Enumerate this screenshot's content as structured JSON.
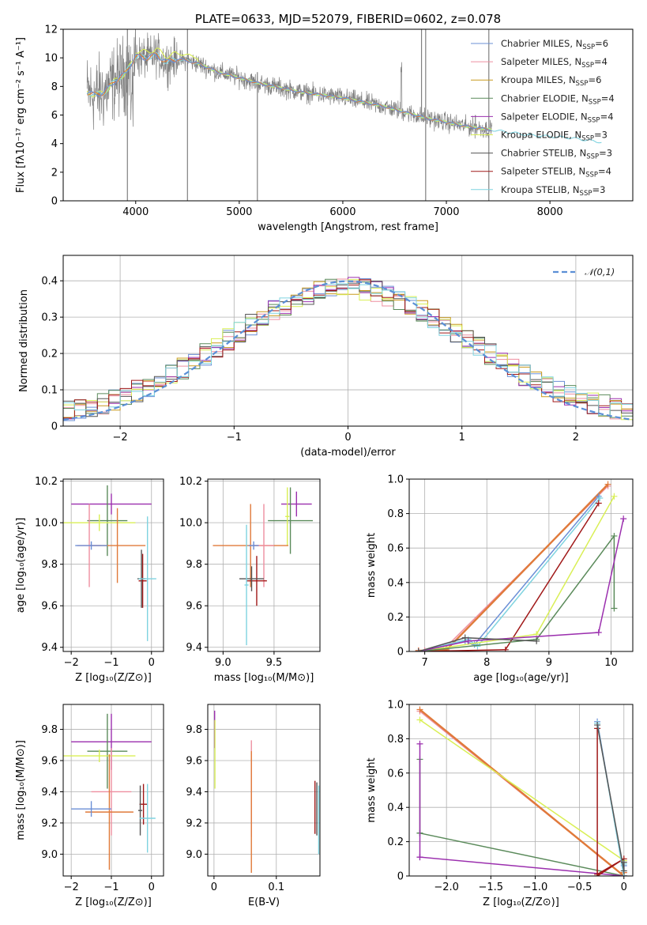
{
  "colors": {
    "chabrier_miles": "#6b8fd6",
    "salpeter_miles": "#ee8fa0",
    "kroupa_miles": "#c99a1e",
    "chabrier_elodie": "#5a8a5a",
    "salpeter_elodie": "#9b2fae",
    "kroupa_elodie": "#d9ef55",
    "chabrier_stelib": "#555555",
    "salpeter_stelib": "#a01818",
    "kroupa_stelib": "#7fd3e0",
    "data": "#808080",
    "orange": "#e07a3a",
    "normal": "#5b8fd6"
  },
  "chart_data": [
    {
      "id": "spectrum",
      "type": "line",
      "title": "PLATE=0633, MJD=52079, FIBERID=0602, z=0.078",
      "xlabel": "wavelength [Angstrom, rest frame]",
      "ylabel": "Flux [fλ10⁻¹⁷ erg cm⁻² s⁻¹ A⁻¹]",
      "xlim": [
        3300,
        8800
      ],
      "ylim": [
        0,
        12
      ],
      "xticks": [
        4000,
        5000,
        6000,
        7000,
        8000
      ],
      "yticks": [
        0,
        2,
        4,
        6,
        8,
        10,
        12
      ],
      "legend_position": "top-right",
      "legend": [
        {
          "name": "Chabrier MILES, N_SSP=6",
          "base": "Chabrier MILES, N",
          "sub": "SSP",
          "tail": "=6",
          "color_key": "chabrier_miles"
        },
        {
          "name": "Salpeter MILES, N_SSP=4",
          "base": "Salpeter MILES, N",
          "sub": "SSP",
          "tail": "=4",
          "color_key": "salpeter_miles"
        },
        {
          "name": "Kroupa MILES, N_SSP=6",
          "base": "Kroupa MILES, N",
          "sub": "SSP",
          "tail": "=6",
          "color_key": "kroupa_miles"
        },
        {
          "name": "Chabrier ELODIE, N_SSP=4",
          "base": "Chabrier ELODIE, N",
          "sub": "SSP",
          "tail": "=4",
          "color_key": "chabrier_elodie"
        },
        {
          "name": "Salpeter ELODIE, N_SSP=4",
          "base": "Salpeter ELODIE, N",
          "sub": "SSP",
          "tail": "=4",
          "color_key": "salpeter_elodie"
        },
        {
          "name": "Kroupa ELODIE, N_SSP=3",
          "base": "Kroupa ELODIE, N",
          "sub": "SSP",
          "tail": "=3",
          "color_key": "kroupa_elodie"
        },
        {
          "name": "Chabrier STELIB, N_SSP=3",
          "base": "Chabrier STELIB, N",
          "sub": "SSP",
          "tail": "=3",
          "color_key": "chabrier_stelib"
        },
        {
          "name": "Salpeter STELIB, N_SSP=4",
          "base": "Salpeter STELIB, N",
          "sub": "SSP",
          "tail": "=4",
          "color_key": "salpeter_stelib"
        },
        {
          "name": "Kroupa STELIB, N_SSP=3",
          "base": "Kroupa STELIB, N",
          "sub": "SSP",
          "tail": "=3",
          "color_key": "kroupa_stelib"
        }
      ],
      "continuum": {
        "x": [
          3530,
          3600,
          3700,
          3800,
          3900,
          4000,
          4100,
          4200,
          4300,
          4400,
          4500,
          4600,
          4800,
          5000,
          5200,
          5400,
          5600,
          5800,
          6000,
          6200,
          6400,
          6600,
          6800,
          7000,
          7200,
          7400,
          7600,
          7800,
          8000,
          8200,
          8400,
          8500
        ],
        "y": [
          7.6,
          7.4,
          7.6,
          8.4,
          8.9,
          10.1,
          10.0,
          10.2,
          9.7,
          9.9,
          9.8,
          9.6,
          9.0,
          8.6,
          8.2,
          7.9,
          7.6,
          7.4,
          7.2,
          6.9,
          6.6,
          6.2,
          5.8,
          5.5,
          5.2,
          5.0,
          4.8,
          4.6,
          4.5,
          4.4,
          4.2,
          4.1
        ]
      }
    },
    {
      "id": "residuals",
      "type": "line",
      "xlabel": "(data-model)/error",
      "ylabel": "Normed distribution",
      "xlim": [
        -2.5,
        2.5
      ],
      "ylim": [
        0,
        0.47
      ],
      "xticks": [
        -2,
        -1,
        0,
        1,
        2
      ],
      "yticks": [
        0.0,
        0.1,
        0.2,
        0.3,
        0.4
      ],
      "legend_position": "top-right",
      "normal_legend": "𝒩(0,1)",
      "normal_curve": {
        "mean": 0,
        "sd": 1
      }
    },
    {
      "id": "age_vs_Z",
      "type": "scatter",
      "xlabel": "Z [log₁₀(Z/Z⊙)]",
      "ylabel": "age  [log₁₀(age/yr)]",
      "xlim": [
        -2.2,
        0.3
      ],
      "ylim": [
        9.38,
        10.21
      ],
      "xticks": [
        -2,
        -1,
        0
      ],
      "yticks": [
        9.4,
        9.6,
        9.8,
        10.0,
        10.2
      ],
      "points": [
        {
          "color_key": "salpeter_elodie",
          "x": -1.0,
          "xerr": 1.0,
          "y": 10.09,
          "yerr": 0.05
        },
        {
          "color_key": "chabrier_elodie",
          "x": -1.1,
          "xerr": 0.5,
          "y": 10.01,
          "yerr": 0.17
        },
        {
          "color_key": "kroupa_elodie",
          "x": -1.3,
          "xerr": 0.9,
          "y": 10.0,
          "yerr": 0.04
        },
        {
          "color_key": "orange",
          "x": -0.85,
          "xerr": 0.7,
          "y": 9.89,
          "yerr": 0.18
        },
        {
          "color_key": "salpeter_miles",
          "x": -1.55,
          "xerr": 0.3,
          "y": 9.89,
          "yerr": 0.2
        },
        {
          "color_key": "chabrier_miles",
          "x": -1.5,
          "xerr": 0.4,
          "y": 9.89,
          "yerr": 0.02
        },
        {
          "color_key": "salpeter_stelib",
          "x": -0.22,
          "xerr": 0.1,
          "y": 9.72,
          "yerr": 0.13
        },
        {
          "color_key": "chabrier_stelib",
          "x": -0.25,
          "xerr": 0.1,
          "y": 9.73,
          "yerr": 0.14
        },
        {
          "color_key": "kroupa_stelib",
          "x": -0.1,
          "xerr": 0.22,
          "y": 9.73,
          "yerr": 0.3
        }
      ]
    },
    {
      "id": "age_vs_mass",
      "type": "scatter",
      "xlabel": "mass [log₁₀(M/M⊙)]",
      "xlim": [
        8.85,
        9.95
      ],
      "ylim": [
        9.38,
        10.21
      ],
      "xticks": [
        9.0,
        9.5
      ],
      "yticks": [
        9.4,
        9.6,
        9.8,
        10.0,
        10.2
      ],
      "points": [
        {
          "color_key": "salpeter_elodie",
          "x": 9.72,
          "xerr": 0.15,
          "y": 10.09,
          "yerr": 0.06
        },
        {
          "color_key": "chabrier_elodie",
          "x": 9.66,
          "xerr": 0.22,
          "y": 10.01,
          "yerr": 0.16
        },
        {
          "color_key": "kroupa_elodie",
          "x": 9.63,
          "xerr": 0.02,
          "y": 10.03,
          "yerr": 0.14
        },
        {
          "color_key": "orange",
          "x": 9.27,
          "xerr": 0.37,
          "y": 9.89,
          "yerr": 0.2
        },
        {
          "color_key": "salpeter_miles",
          "x": 9.4,
          "xerr": 0.1,
          "y": 9.89,
          "yerr": 0.2
        },
        {
          "color_key": "chabrier_miles",
          "x": 9.3,
          "xerr": 0.05,
          "y": 9.89,
          "yerr": 0.02
        },
        {
          "color_key": "salpeter_stelib",
          "x": 9.33,
          "xerr": 0.1,
          "y": 9.72,
          "yerr": 0.12
        },
        {
          "color_key": "chabrier_stelib",
          "x": 9.28,
          "xerr": 0.12,
          "y": 9.73,
          "yerr": 0.06
        },
        {
          "color_key": "kroupa_stelib",
          "x": 9.23,
          "xerr": 0.02,
          "y": 9.7,
          "yerr": 0.29
        }
      ]
    },
    {
      "id": "weight_vs_age",
      "type": "line",
      "xlabel": "age  [log₁₀(age/yr)]",
      "ylabel": "mass weight",
      "xlim": [
        6.75,
        10.35
      ],
      "ylim": [
        0,
        1
      ],
      "xticks": [
        7,
        8,
        9,
        10
      ],
      "yticks": [
        0.0,
        0.2,
        0.4,
        0.6,
        0.8,
        1.0
      ],
      "series": [
        {
          "color_key": "salpeter_miles",
          "x": [
            6.9,
            7.0,
            7.3,
            9.95
          ],
          "y": [
            0.005,
            0.005,
            0.01,
            0.96
          ]
        },
        {
          "color_key": "orange",
          "x": [
            6.9,
            7.1,
            7.35,
            9.95
          ],
          "y": [
            0.005,
            0.005,
            0.01,
            0.97
          ]
        },
        {
          "color_key": "chabrier_miles",
          "x": [
            6.9,
            7.65,
            7.8,
            9.8
          ],
          "y": [
            0.0,
            0.06,
            0.04,
            0.9
          ]
        },
        {
          "color_key": "kroupa_stelib",
          "x": [
            6.9,
            7.7,
            7.85,
            9.82
          ],
          "y": [
            0.0,
            0.07,
            0.03,
            0.89
          ]
        },
        {
          "color_key": "salpeter_stelib",
          "x": [
            6.9,
            8.3,
            9.8
          ],
          "y": [
            0.0,
            0.01,
            0.86
          ]
        },
        {
          "color_key": "kroupa_elodie",
          "x": [
            6.9,
            8.8,
            10.05
          ],
          "y": [
            0.0,
            0.1,
            0.9
          ]
        },
        {
          "color_key": "chabrier_elodie",
          "x": [
            6.9,
            8.8,
            10.05,
            10.05
          ],
          "y": [
            0.0,
            0.07,
            0.67,
            0.25
          ]
        },
        {
          "color_key": "salpeter_elodie",
          "x": [
            6.9,
            7.7,
            9.8,
            10.2
          ],
          "y": [
            0.0,
            0.06,
            0.11,
            0.77
          ]
        },
        {
          "color_key": "chabrier_stelib",
          "x": [
            6.9,
            7.65,
            8.8
          ],
          "y": [
            0.0,
            0.08,
            0.06
          ]
        }
      ]
    },
    {
      "id": "mass_vs_Z",
      "type": "scatter",
      "xlabel": "Z [log₁₀(Z/Z⊙)]",
      "ylabel": "mass [log₁₀(M/M⊙)]",
      "xlim": [
        -2.2,
        0.3
      ],
      "ylim": [
        8.86,
        9.96
      ],
      "xticks": [
        -2,
        -1,
        0
      ],
      "yticks": [
        9.0,
        9.2,
        9.4,
        9.6,
        9.8
      ],
      "points": [
        {
          "color_key": "salpeter_elodie",
          "x": -1.0,
          "xerr": 1.0,
          "y": 9.72,
          "yerr": 0.18
        },
        {
          "color_key": "chabrier_elodie",
          "x": -1.1,
          "xerr": 0.5,
          "y": 9.66,
          "yerr": 0.24
        },
        {
          "color_key": "kroupa_elodie",
          "x": -1.3,
          "xerr": 0.9,
          "y": 9.63,
          "yerr": 0.04
        },
        {
          "color_key": "salpeter_miles",
          "x": -1.0,
          "xerr": 0.5,
          "y": 9.4,
          "yerr": 0.28
        },
        {
          "color_key": "orange",
          "x": -1.05,
          "xerr": 0.6,
          "y": 9.27,
          "yerr": 0.37
        },
        {
          "color_key": "chabrier_miles",
          "x": -1.5,
          "xerr": 0.5,
          "y": 9.29,
          "yerr": 0.05
        },
        {
          "color_key": "salpeter_stelib",
          "x": -0.2,
          "xerr": 0.1,
          "y": 9.32,
          "yerr": 0.13
        },
        {
          "color_key": "chabrier_stelib",
          "x": -0.28,
          "xerr": 0.05,
          "y": 9.28,
          "yerr": 0.16
        },
        {
          "color_key": "kroupa_stelib",
          "x": -0.1,
          "xerr": 0.2,
          "y": 9.23,
          "yerr": 0.22
        }
      ]
    },
    {
      "id": "mass_vs_ebv",
      "type": "scatter",
      "xlabel": "E(B-V)",
      "xlim": [
        -0.01,
        0.17
      ],
      "ylim": [
        8.86,
        9.96
      ],
      "xticks": [
        0.0,
        0.1
      ],
      "yticks": [
        9.0,
        9.2,
        9.4,
        9.6,
        9.8
      ],
      "points": [
        {
          "color_key": "salpeter_elodie",
          "x": 0.001,
          "xerr": 0,
          "y": 9.8,
          "yerr": 0.12
        },
        {
          "color_key": "kroupa_elodie",
          "x": 0.0015,
          "xerr": 0,
          "y": 9.64,
          "yerr": 0.22
        },
        {
          "color_key": "salpeter_miles",
          "x": 0.06,
          "xerr": 0,
          "y": 9.42,
          "yerr": 0.31
        },
        {
          "color_key": "orange",
          "x": 0.06,
          "xerr": 0,
          "y": 9.27,
          "yerr": 0.39
        },
        {
          "color_key": "salpeter_stelib",
          "x": 0.162,
          "xerr": 0,
          "y": 9.3,
          "yerr": 0.17
        },
        {
          "color_key": "chabrier_stelib",
          "x": 0.165,
          "xerr": 0,
          "y": 9.29,
          "yerr": 0.17
        },
        {
          "color_key": "kroupa_stelib",
          "x": 0.168,
          "xerr": 0,
          "y": 9.22,
          "yerr": 0.22
        }
      ]
    },
    {
      "id": "weight_vs_Z",
      "type": "line",
      "xlabel": "Z [log₁₀(Z/Z⊙)]",
      "ylabel": "mass weight",
      "xlim": [
        -2.42,
        0.1
      ],
      "ylim": [
        0,
        1
      ],
      "xticks": [
        -2.0,
        -1.5,
        -1.0,
        -0.5,
        0.0
      ],
      "yticks": [
        0.0,
        0.2,
        0.4,
        0.6,
        0.8,
        1.0
      ],
      "series": [
        {
          "color_key": "salpeter_miles",
          "x": [
            -2.3,
            0.0,
            0.0
          ],
          "y": [
            0.96,
            0.0,
            0.02
          ]
        },
        {
          "color_key": "orange",
          "x": [
            -2.3,
            0.0,
            0.0
          ],
          "y": [
            0.97,
            0.0,
            0.02
          ]
        },
        {
          "color_key": "kroupa_elodie",
          "x": [
            -2.3,
            0.0
          ],
          "y": [
            0.91,
            0.09
          ]
        },
        {
          "color_key": "chabrier_elodie",
          "x": [
            -2.3,
            -2.3,
            -2.3,
            0.0
          ],
          "y": [
            0.25,
            0.68,
            0.25,
            0.0
          ]
        },
        {
          "color_key": "salpeter_elodie",
          "x": [
            -2.3,
            -2.3,
            -2.3,
            0.0
          ],
          "y": [
            0.77,
            0.11,
            0.11,
            0.0
          ]
        },
        {
          "color_key": "salpeter_stelib",
          "x": [
            -0.3,
            -0.3,
            0.0,
            -0.3
          ],
          "y": [
            0.86,
            0.0,
            0.1,
            0.01
          ]
        },
        {
          "color_key": "chabrier_miles",
          "x": [
            -0.3,
            0.0,
            0.0
          ],
          "y": [
            0.9,
            0.0,
            0.06
          ]
        },
        {
          "color_key": "kroupa_stelib",
          "x": [
            -0.3,
            0.0,
            0.0
          ],
          "y": [
            0.89,
            0.0,
            0.07
          ]
        },
        {
          "color_key": "chabrier_stelib",
          "x": [
            -0.3,
            0.0,
            0.0
          ],
          "y": [
            0.88,
            0.03,
            0.08
          ]
        }
      ]
    }
  ]
}
